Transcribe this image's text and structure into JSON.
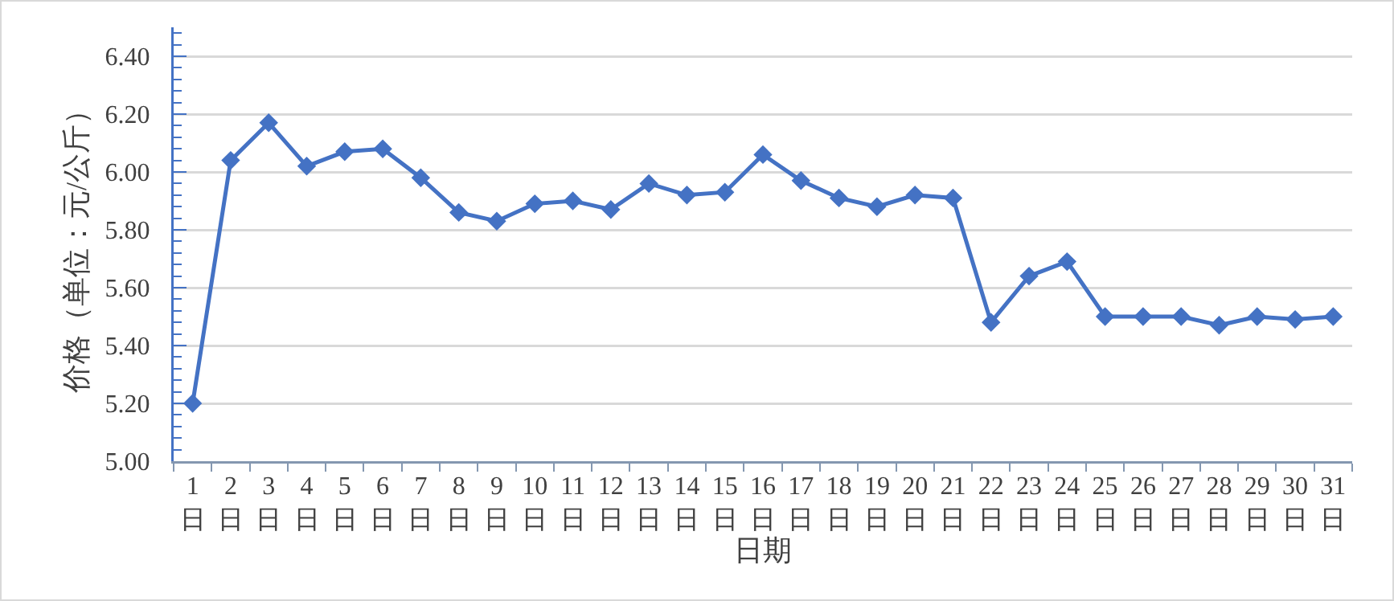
{
  "chart_data": {
    "type": "line",
    "xlabel": "日期",
    "ylabel": "价格（单位：元/公斤）",
    "categories": [
      "1日",
      "2日",
      "3日",
      "4日",
      "5日",
      "6日",
      "7日",
      "8日",
      "9日",
      "10日",
      "11日",
      "12日",
      "13日",
      "14日",
      "15日",
      "16日",
      "17日",
      "18日",
      "19日",
      "20日",
      "21日",
      "22日",
      "23日",
      "24日",
      "25日",
      "26日",
      "27日",
      "28日",
      "29日",
      "30日",
      "31日"
    ],
    "series": [
      {
        "color": "#4472c4",
        "values": [
          5.2,
          6.04,
          6.17,
          6.02,
          6.07,
          6.08,
          5.98,
          5.86,
          5.83,
          5.89,
          5.9,
          5.87,
          5.96,
          5.92,
          5.93,
          6.06,
          5.97,
          5.91,
          5.88,
          5.92,
          5.91,
          5.48,
          5.64,
          5.69,
          5.5,
          5.5,
          5.5,
          5.47,
          5.5,
          5.49,
          5.5
        ]
      }
    ],
    "ylim": [
      5,
      6.5
    ],
    "yticks": [
      {
        "value": 5,
        "label": "5.00"
      },
      {
        "value": 5.2,
        "label": "5.20"
      },
      {
        "value": 5.4,
        "label": "5.40"
      },
      {
        "value": 5.6,
        "label": "5.60"
      },
      {
        "value": 5.8,
        "label": "5.80"
      },
      {
        "value": 6,
        "label": "6.00"
      },
      {
        "value": 6.2,
        "label": "6.20"
      },
      {
        "value": 6.4,
        "label": "6.40"
      }
    ],
    "grid": "y",
    "marker": "diamond",
    "line_style": "solid"
  }
}
